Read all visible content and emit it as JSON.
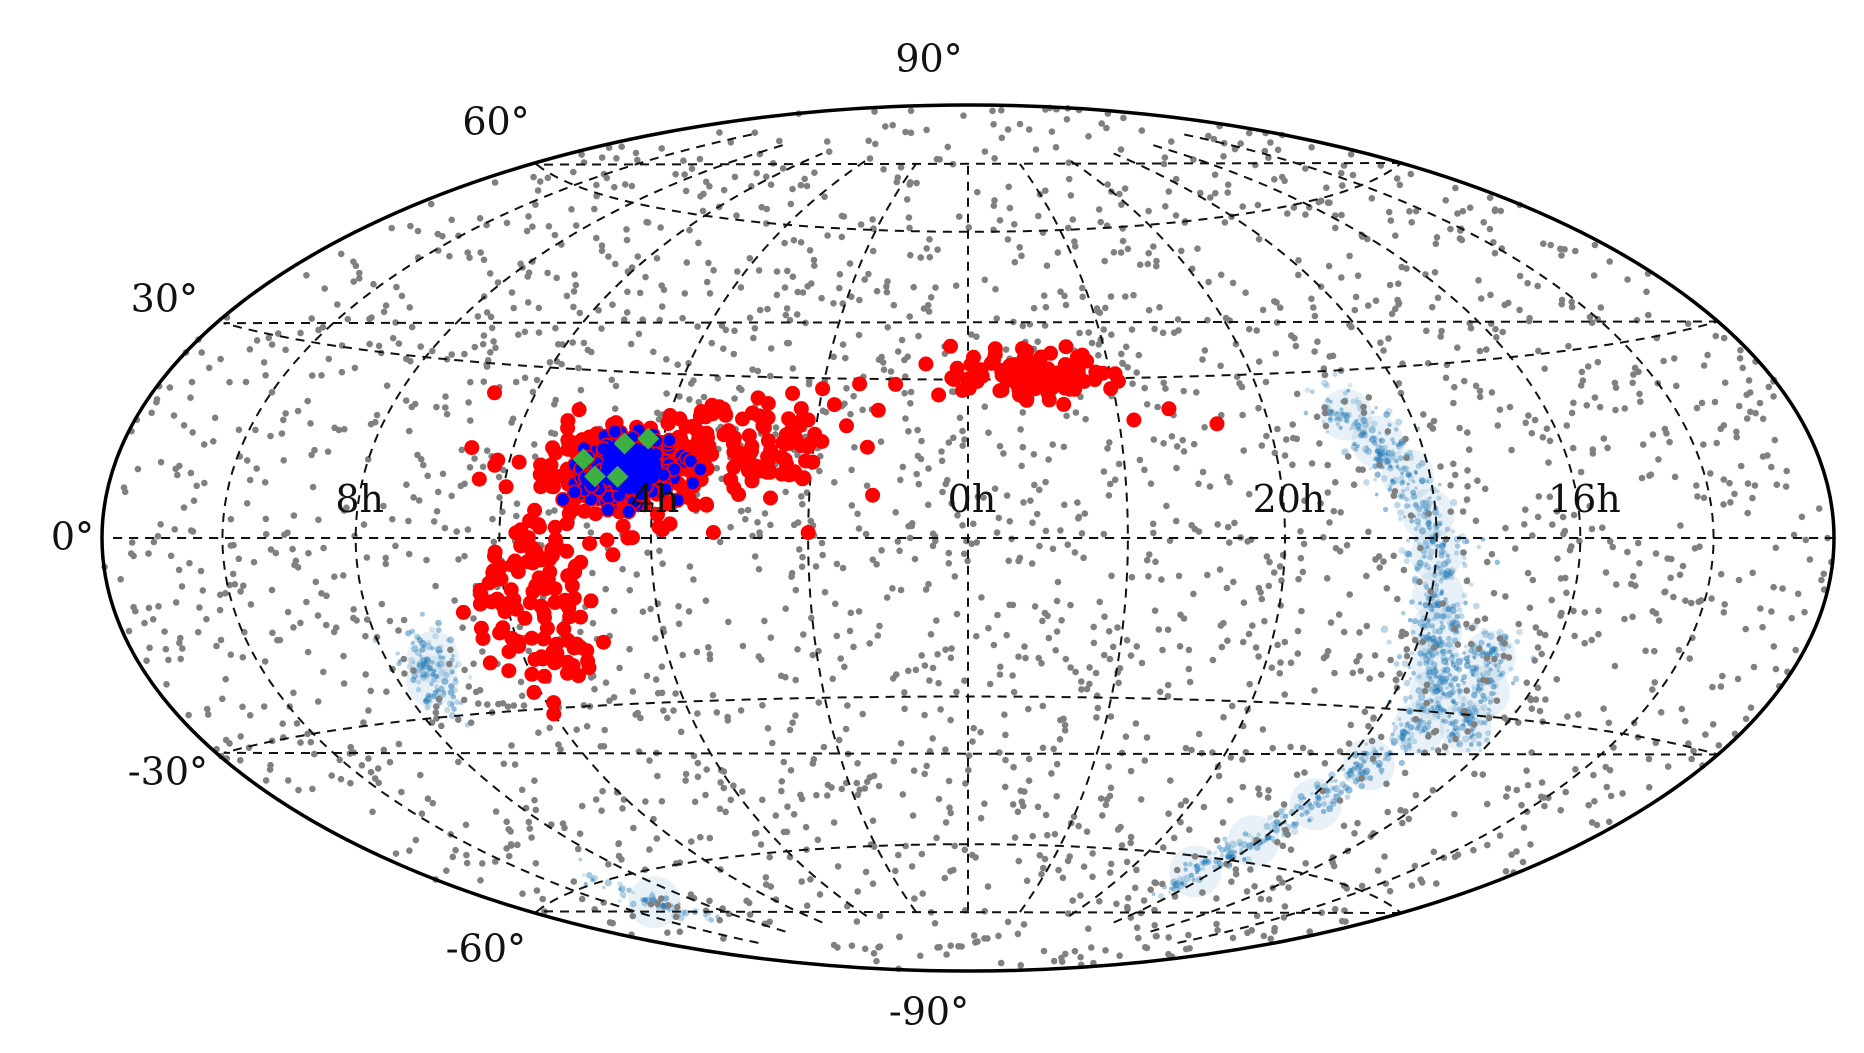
{
  "chart_data": {
    "type": "scatter",
    "projection": "hammer-aitoff",
    "title": "",
    "xlabel": "",
    "ylabel": "",
    "grid": true,
    "ra_range_hours": [
      0,
      24
    ],
    "ra_direction": "increasing-left",
    "dec_range_deg": [
      -90,
      90
    ],
    "dec_tick_labels": [
      "90°",
      "60°",
      "30°",
      "0°",
      "-30°",
      "-60°",
      "-90°"
    ],
    "ra_tick_labels": [
      "8h",
      "4h",
      "0h",
      "20h",
      "16h"
    ],
    "colors": {
      "background_points": "#808080",
      "cluster_points": "#ff0000",
      "cluster_core": "#0000ff",
      "core_members": "#3cb043",
      "density_map": "#1f77b4"
    },
    "series": [
      {
        "marker": "circle",
        "color": "#808080",
        "size": "small",
        "distribution": "uniform over the sky",
        "count_estimate": 2600
      },
      {
        "marker": "density",
        "color": "#1f77b4",
        "distribution": "faint band of stars",
        "points": [
          {
            "ra": 18.9,
            "dec": 22
          },
          {
            "ra": 18.6,
            "dec": 17
          },
          {
            "ra": 18.3,
            "dec": 11
          },
          {
            "ra": 18.1,
            "dec": 4
          },
          {
            "ra": 18.0,
            "dec": -3
          },
          {
            "ra": 17.9,
            "dec": -10
          },
          {
            "ra": 17.8,
            "dec": -16
          },
          {
            "ra": 17.6,
            "dec": -22
          },
          {
            "ra": 17.4,
            "dec": -27
          },
          {
            "ra": 17.3,
            "dec": -33
          },
          {
            "ra": 17.6,
            "dec": -40
          },
          {
            "ra": 17.8,
            "dec": -48
          },
          {
            "ra": 18.1,
            "dec": -56
          },
          {
            "ra": 18.4,
            "dec": -63
          },
          {
            "ra": 16.9,
            "dec": -20
          },
          {
            "ra": 16.7,
            "dec": -26
          },
          {
            "ra": 16.6,
            "dec": -32
          },
          {
            "ra": 7.3,
            "dec": -20
          },
          {
            "ra": 7.5,
            "dec": -24
          },
          {
            "ra": 9.0,
            "dec": -65
          }
        ]
      },
      {
        "marker": "circle",
        "color": "#ff0000",
        "size": "large",
        "points": [
          {
            "ra": 23.6,
            "dec": 36
          },
          {
            "ra": 23.2,
            "dec": 36
          },
          {
            "ra": 22.8,
            "dec": 35
          },
          {
            "ra": 22.4,
            "dec": 33
          },
          {
            "ra": 22.1,
            "dec": 31
          },
          {
            "ra": 23.0,
            "dec": 31
          },
          {
            "ra": 23.5,
            "dec": 31
          },
          {
            "ra": 0.2,
            "dec": 30
          },
          {
            "ra": 0.4,
            "dec": 27
          },
          {
            "ra": 22.6,
            "dec": 28
          },
          {
            "ra": 22.9,
            "dec": 26
          },
          {
            "ra": 23.3,
            "dec": 28
          },
          {
            "ra": 0.6,
            "dec": 33
          },
          {
            "ra": 1.0,
            "dec": 29
          },
          {
            "ra": 1.5,
            "dec": 29
          },
          {
            "ra": 2.0,
            "dec": 28
          },
          {
            "ra": 2.4,
            "dec": 27
          },
          {
            "ra": 2.7,
            "dec": 25
          },
          {
            "ra": 1.8,
            "dec": 25
          },
          {
            "ra": 1.2,
            "dec": 24
          },
          {
            "ra": 1.6,
            "dec": 21
          },
          {
            "ra": 2.2,
            "dec": 22
          },
          {
            "ra": 3.0,
            "dec": 22
          },
          {
            "ra": 3.2,
            "dec": 19
          },
          {
            "ra": 2.6,
            "dec": 18
          },
          {
            "ra": 1.9,
            "dec": 18
          },
          {
            "ra": 1.3,
            "dec": 17
          },
          {
            "ra": 2.4,
            "dec": 15
          },
          {
            "ra": 3.4,
            "dec": 16
          },
          {
            "ra": 3.0,
            "dec": 13
          },
          {
            "ra": 2.1,
            "dec": 11
          },
          {
            "ra": 2.9,
            "dec": 8
          },
          {
            "ra": 1.2,
            "dec": 8
          },
          {
            "ra": 3.3,
            "dec": 6
          },
          {
            "ra": 2.0,
            "dec": 1
          },
          {
            "ra": 3.2,
            "dec": 1
          },
          {
            "ra": 3.9,
            "dec": 2
          },
          {
            "ra": 4.3,
            "dec": 0
          },
          {
            "ra": 4.8,
            "dec": -1
          },
          {
            "ra": 5.3,
            "dec": -2
          },
          {
            "ra": 5.6,
            "dec": 3
          },
          {
            "ra": 5.8,
            "dec": -4
          },
          {
            "ra": 6.0,
            "dec": -5
          },
          {
            "ra": 4.5,
            "dec": -3
          },
          {
            "ra": 5.0,
            "dec": -5
          },
          {
            "ra": 5.5,
            "dec": -7
          },
          {
            "ra": 5.9,
            "dec": -9
          },
          {
            "ra": 5.2,
            "dec": -11
          },
          {
            "ra": 5.8,
            "dec": -14
          },
          {
            "ra": 6.2,
            "dec": -11
          },
          {
            "ra": 6.0,
            "dec": -18
          },
          {
            "ra": 5.6,
            "dec": -22
          },
          {
            "ra": 6.3,
            "dec": -23
          },
          {
            "ra": 6.1,
            "dec": -27
          },
          {
            "ra": 5.9,
            "dec": -29
          },
          {
            "ra": 6.0,
            "dec": -31
          },
          {
            "ra": 6.6,
            "dec": 25
          },
          {
            "ra": 20.7,
            "dec": 21
          },
          {
            "ra": 21.3,
            "dec": 24
          },
          {
            "ra": 21.8,
            "dec": 22
          },
          {
            "ra": 4.1,
            "dec": 6
          },
          {
            "ra": 4.6,
            "dec": 8
          },
          {
            "ra": 5.1,
            "dec": 10
          },
          {
            "ra": 5.5,
            "dec": 9
          },
          {
            "ra": 5.4,
            "dec": 15
          },
          {
            "ra": 5.0,
            "dec": 18
          },
          {
            "ra": 4.5,
            "dec": 15
          },
          {
            "ra": 3.8,
            "dec": 14
          },
          {
            "ra": 3.6,
            "dec": 20
          },
          {
            "ra": 4.4,
            "dec": 20
          },
          {
            "ra": 3.9,
            "dec": 10
          },
          {
            "ra": 3.5,
            "dec": 11
          }
        ]
      },
      {
        "marker": "circle",
        "color": "#0000ff",
        "edgecolor": "#ff0000",
        "points": [
          {
            "ra": 4.2,
            "dec": 11
          },
          {
            "ra": 4.4,
            "dec": 12
          },
          {
            "ra": 4.0,
            "dec": 13
          },
          {
            "ra": 4.6,
            "dec": 10
          },
          {
            "ra": 4.3,
            "dec": 9
          },
          {
            "ra": 4.8,
            "dec": 12
          },
          {
            "ra": 4.1,
            "dec": 16
          },
          {
            "ra": 4.5,
            "dec": 17
          },
          {
            "ra": 4.9,
            "dec": 15
          },
          {
            "ra": 5.1,
            "dec": 13
          },
          {
            "ra": 3.8,
            "dec": 11
          },
          {
            "ra": 3.9,
            "dec": 8
          },
          {
            "ra": 4.7,
            "dec": 7
          },
          {
            "ra": 5.0,
            "dec": 9
          },
          {
            "ra": 4.2,
            "dec": 6
          },
          {
            "ra": 3.7,
            "dec": 15
          },
          {
            "ra": 4.4,
            "dec": 14
          },
          {
            "ra": 4.6,
            "dec": 19
          }
        ]
      },
      {
        "marker": "diamond",
        "color": "#3cb043",
        "points": [
          {
            "ra": 4.5,
            "dec": 17
          },
          {
            "ra": 4.2,
            "dec": 18
          },
          {
            "ra": 5.0,
            "dec": 14
          },
          {
            "ra": 4.8,
            "dec": 11
          },
          {
            "ra": 4.5,
            "dec": 11
          }
        ]
      }
    ]
  }
}
